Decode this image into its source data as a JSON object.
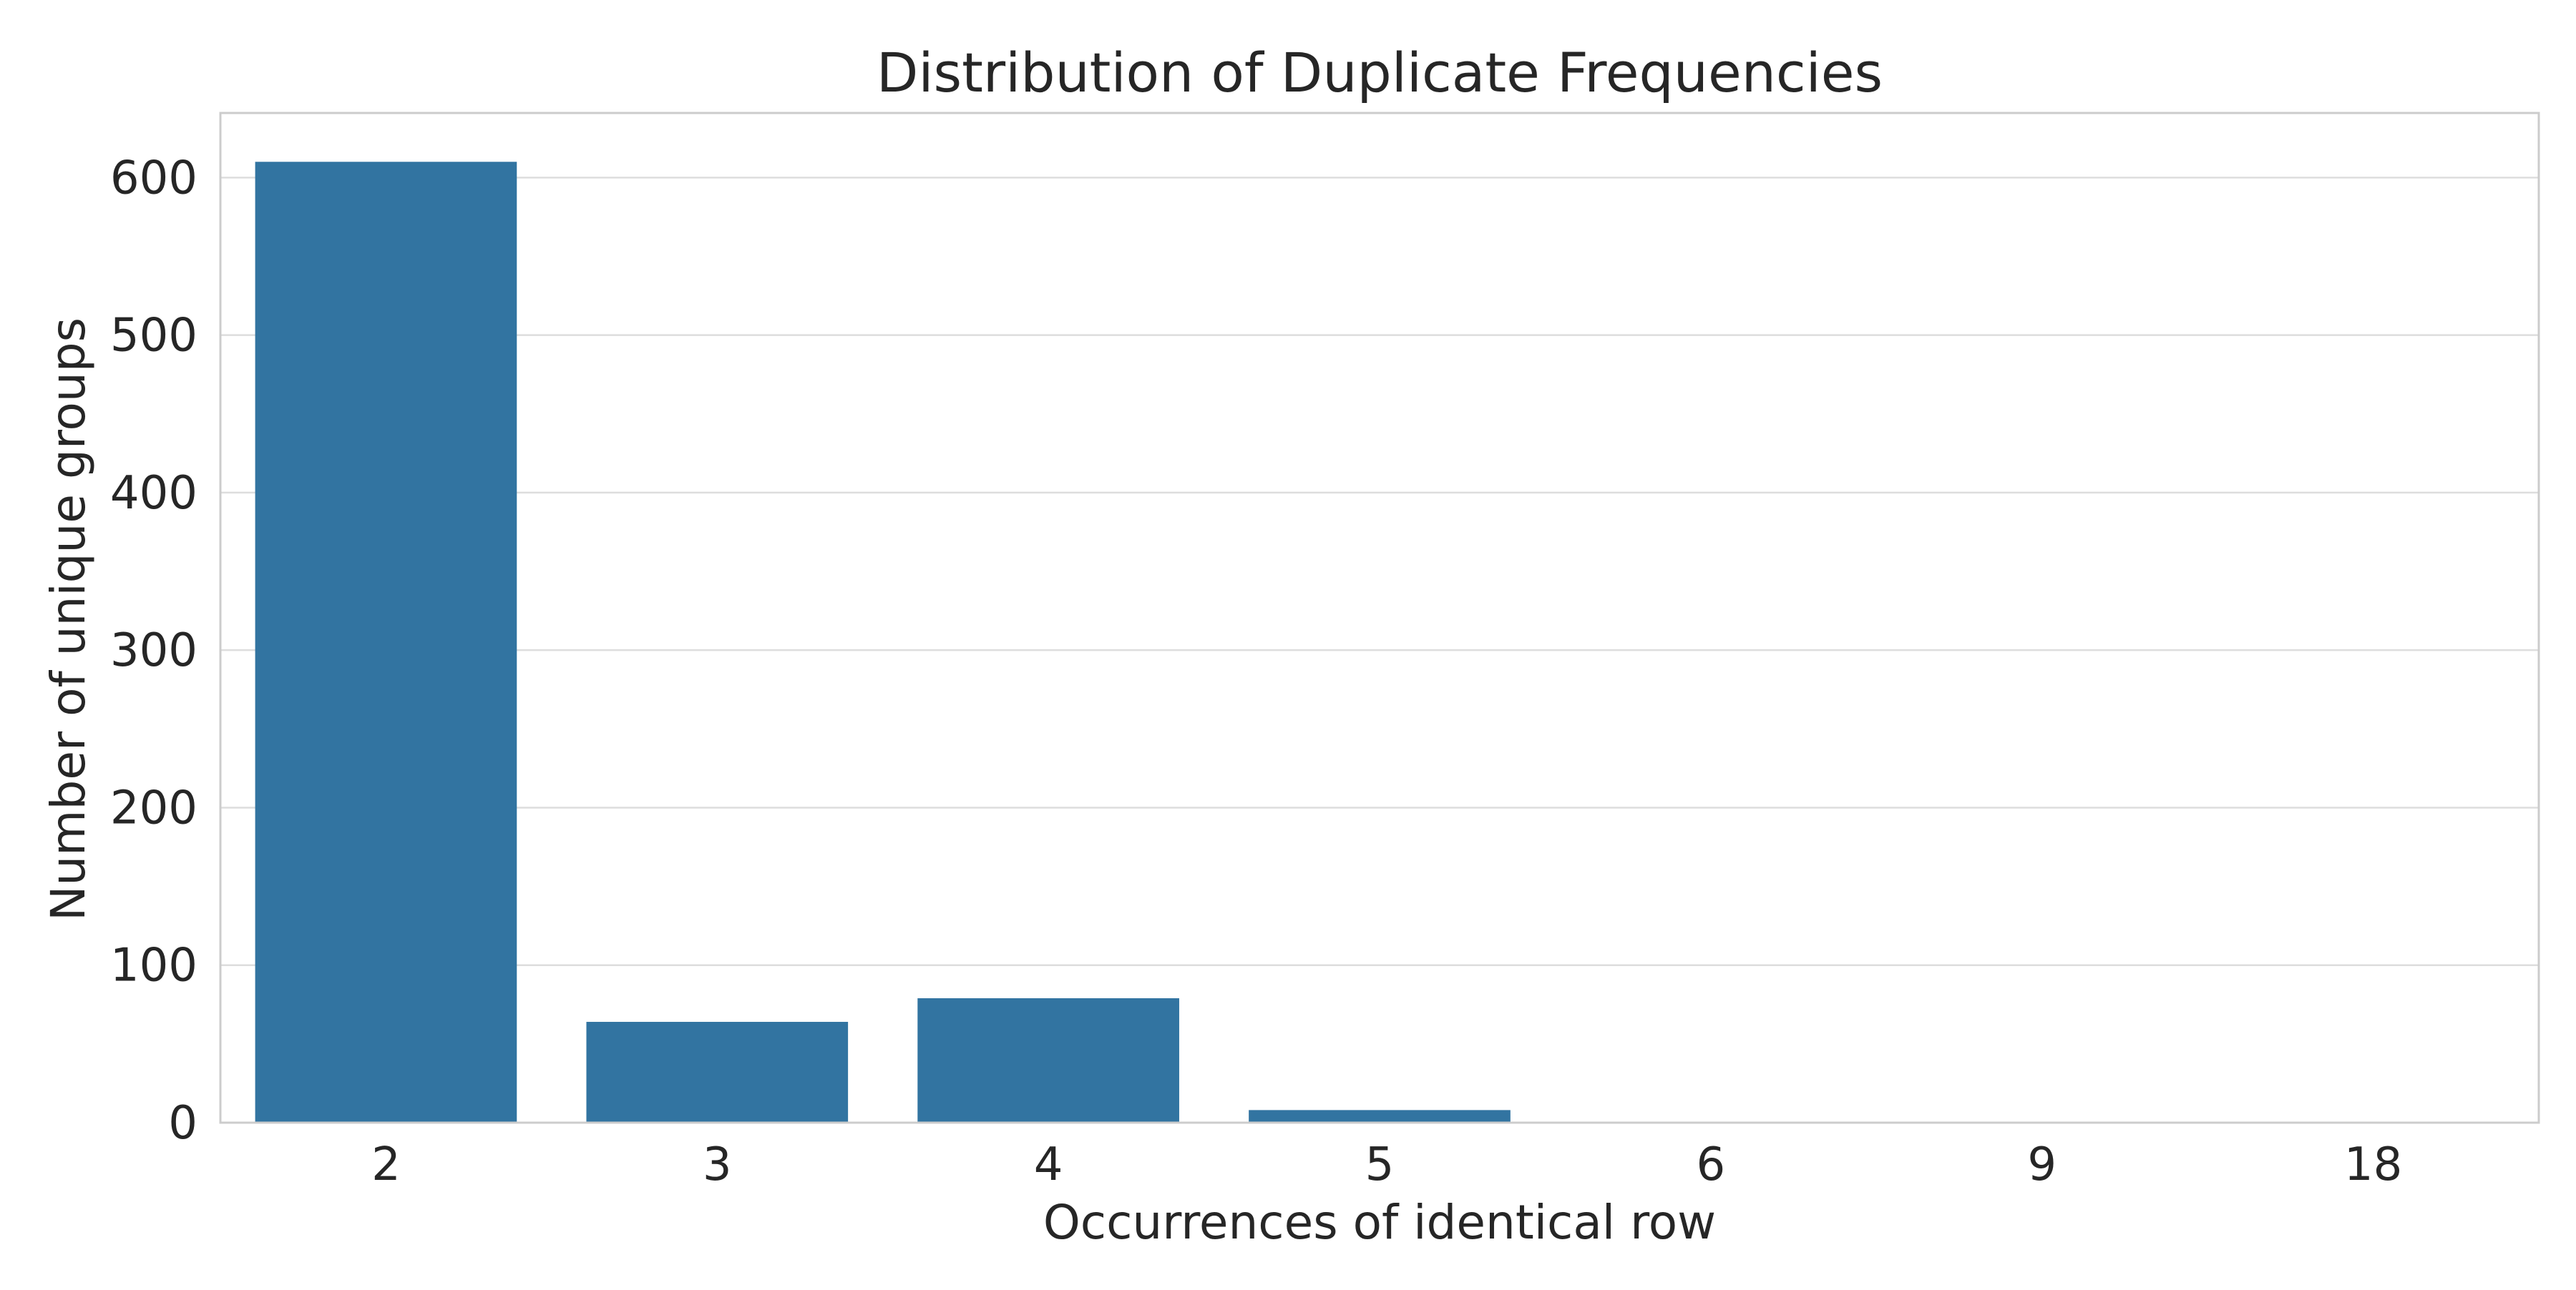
{
  "chart_data": {
    "type": "bar",
    "title": "Distribution of Duplicate Frequencies",
    "xlabel": "Occurrences of identical row",
    "ylabel": "Number of unique groups",
    "categories": [
      "2",
      "3",
      "4",
      "5",
      "6",
      "9",
      "18"
    ],
    "values": [
      610,
      64,
      79,
      8,
      0,
      0,
      0
    ],
    "ylim": [
      0,
      641
    ],
    "yticks": [
      0,
      100,
      200,
      300,
      400,
      500,
      600
    ],
    "grid": "horizontal",
    "legend": "none",
    "bar_color": "#3274a1",
    "grid_color": "#dddddd",
    "frame_color": "#cccccc"
  }
}
